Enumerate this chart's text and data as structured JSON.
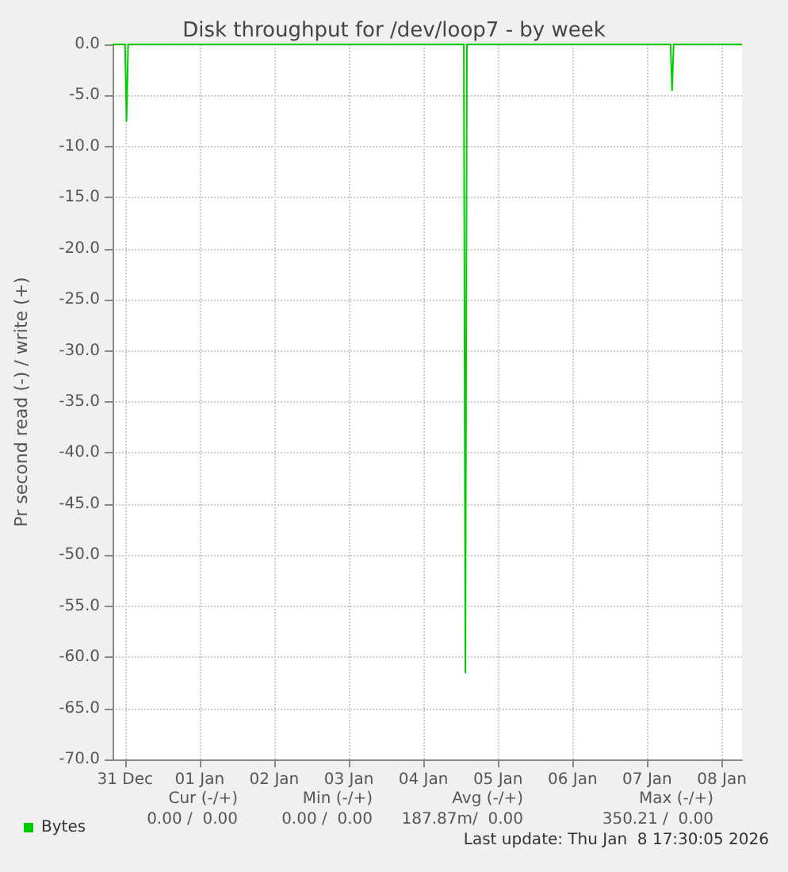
{
  "chart_data": {
    "type": "line",
    "title": "Disk throughput for /dev/loop7 - by week",
    "ylabel": "Pr second read (-) / write (+)",
    "x": [
      "2025-12-30T20:00",
      "2025-12-31T00:00",
      "2025-12-31T00:30",
      "2025-12-31T01:00",
      "2026-01-04T13:00",
      "2026-01-04T13:30",
      "2026-01-04T14:00",
      "2026-01-07T07:30",
      "2026-01-07T08:00",
      "2026-01-07T08:30",
      "2026-01-08T06:30"
    ],
    "series": [
      {
        "name": "Bytes",
        "color": "#00cc00",
        "values": [
          0,
          0,
          -7.5,
          0,
          0,
          -61.5,
          0,
          0,
          -4.5,
          0,
          0
        ]
      }
    ],
    "xlim": [
      "2025-12-30T20:00",
      "2026-01-08T06:30"
    ],
    "xticks": [
      {
        "value": "2025-12-31",
        "label": "31 Dec"
      },
      {
        "value": "2026-01-01",
        "label": "01 Jan"
      },
      {
        "value": "2026-01-02",
        "label": "02 Jan"
      },
      {
        "value": "2026-01-03",
        "label": "03 Jan"
      },
      {
        "value": "2026-01-04",
        "label": "04 Jan"
      },
      {
        "value": "2026-01-05",
        "label": "05 Jan"
      },
      {
        "value": "2026-01-06",
        "label": "06 Jan"
      },
      {
        "value": "2026-01-07",
        "label": "07 Jan"
      },
      {
        "value": "2026-01-08",
        "label": "08 Jan"
      }
    ],
    "ylim": [
      -70,
      0
    ],
    "yticks": [
      {
        "value": 0,
        "label": "0.0"
      },
      {
        "value": -5,
        "label": "-5.0"
      },
      {
        "value": -10,
        "label": "-10.0"
      },
      {
        "value": -15,
        "label": "-15.0"
      },
      {
        "value": -20,
        "label": "-20.0"
      },
      {
        "value": -25,
        "label": "-25.0"
      },
      {
        "value": -30,
        "label": "-30.0"
      },
      {
        "value": -35,
        "label": "-35.0"
      },
      {
        "value": -40,
        "label": "-40.0"
      },
      {
        "value": -45,
        "label": "-45.0"
      },
      {
        "value": -50,
        "label": "-50.0"
      },
      {
        "value": -55,
        "label": "-55.0"
      },
      {
        "value": -60,
        "label": "-60.0"
      },
      {
        "value": -65,
        "label": "-65.0"
      },
      {
        "value": -70,
        "label": "-70.0"
      }
    ],
    "grid": true,
    "legend": "bottom left",
    "marker": "none",
    "line_style": "solid",
    "annotations": [
      "Cur (-/+)",
      "Min (-/+)",
      "Avg (-/+)",
      "Max (-/+)",
      "0.00 /  0.00",
      "0.00 /  0.00",
      "187.87m/  0.00",
      "350.21 /  0.00",
      "Last update: Thu Jan  8 17:30:05 2026"
    ]
  }
}
